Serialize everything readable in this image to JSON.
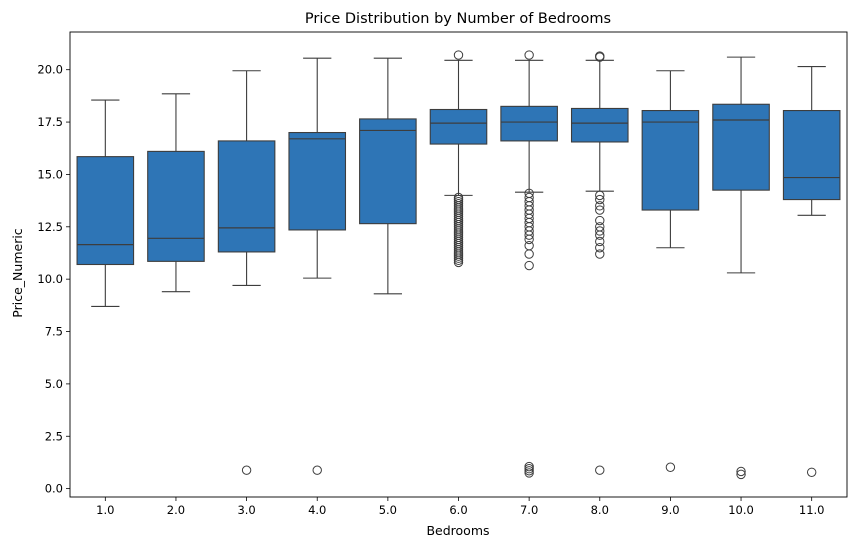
{
  "chart_data": {
    "type": "box",
    "title": "Price Distribution by Number of Bedrooms",
    "xlabel": "Bedrooms",
    "ylabel": "Price_Numeric",
    "ylim": [
      -0.4,
      21.8
    ],
    "yticks": [
      0.0,
      2.5,
      5.0,
      7.5,
      10.0,
      12.5,
      15.0,
      17.5,
      20.0
    ],
    "ytick_labels": [
      "0.0",
      "2.5",
      "5.0",
      "7.5",
      "10.0",
      "12.5",
      "15.0",
      "17.5",
      "20.0"
    ],
    "categories": [
      "1.0",
      "2.0",
      "3.0",
      "4.0",
      "5.0",
      "6.0",
      "7.0",
      "8.0",
      "9.0",
      "10.0",
      "11.0"
    ],
    "box_color": "#2e75b6",
    "line_color": "#3d3d3d",
    "boxes": [
      {
        "category": "1.0",
        "whisker_low": 8.7,
        "q1": 10.7,
        "median": 11.65,
        "q3": 15.85,
        "whisker_high": 18.55,
        "outliers": []
      },
      {
        "category": "2.0",
        "whisker_low": 9.4,
        "q1": 10.85,
        "median": 11.95,
        "q3": 16.1,
        "whisker_high": 18.85,
        "outliers": []
      },
      {
        "category": "3.0",
        "whisker_low": 9.7,
        "q1": 11.3,
        "median": 12.45,
        "q3": 16.6,
        "whisker_high": 19.95,
        "outliers": [
          0.88
        ]
      },
      {
        "category": "4.0",
        "whisker_low": 10.05,
        "q1": 12.35,
        "median": 16.7,
        "q3": 17.0,
        "whisker_high": 20.55,
        "outliers": [
          0.88
        ]
      },
      {
        "category": "5.0",
        "whisker_low": 9.3,
        "q1": 12.65,
        "median": 17.1,
        "q3": 17.65,
        "whisker_high": 20.55,
        "outliers": []
      },
      {
        "category": "6.0",
        "whisker_low": 14.0,
        "q1": 16.45,
        "median": 17.45,
        "q3": 18.1,
        "whisker_high": 20.45,
        "outliers": [
          20.7,
          10.8,
          10.9,
          11.0,
          11.1,
          11.2,
          11.3,
          11.4,
          11.5,
          11.6,
          11.7,
          11.8,
          11.9,
          12.0,
          12.1,
          12.2,
          12.3,
          12.4,
          12.5,
          12.6,
          12.7,
          12.8,
          12.9,
          13.0,
          13.1,
          13.2,
          13.3,
          13.4,
          13.5,
          13.6,
          13.7,
          13.8,
          13.9
        ]
      },
      {
        "category": "7.0",
        "whisker_low": 14.15,
        "q1": 16.6,
        "median": 17.5,
        "q3": 18.25,
        "whisker_high": 20.45,
        "outliers": [
          20.7,
          14.1,
          13.9,
          13.7,
          13.5,
          13.3,
          13.1,
          12.9,
          12.7,
          12.5,
          12.3,
          12.1,
          11.9,
          11.6,
          11.2,
          10.65,
          1.05,
          0.95,
          0.85,
          0.75
        ]
      },
      {
        "category": "8.0",
        "whisker_low": 14.2,
        "q1": 16.55,
        "median": 17.45,
        "q3": 18.15,
        "whisker_high": 20.45,
        "outliers": [
          20.65,
          20.6,
          14.0,
          13.8,
          13.5,
          13.3,
          12.8,
          12.5,
          12.3,
          12.1,
          11.8,
          11.5,
          11.2,
          0.88
        ]
      },
      {
        "category": "9.0",
        "whisker_low": 11.5,
        "q1": 13.3,
        "median": 17.5,
        "q3": 18.05,
        "whisker_high": 19.95,
        "outliers": [
          1.02
        ]
      },
      {
        "category": "10.0",
        "whisker_low": 10.3,
        "q1": 14.25,
        "median": 17.6,
        "q3": 18.35,
        "whisker_high": 20.6,
        "outliers": [
          0.82,
          0.68
        ]
      },
      {
        "category": "11.0",
        "whisker_low": 13.05,
        "q1": 13.8,
        "median": 14.85,
        "q3": 18.05,
        "whisker_high": 20.15,
        "outliers": [
          0.78
        ]
      }
    ]
  }
}
